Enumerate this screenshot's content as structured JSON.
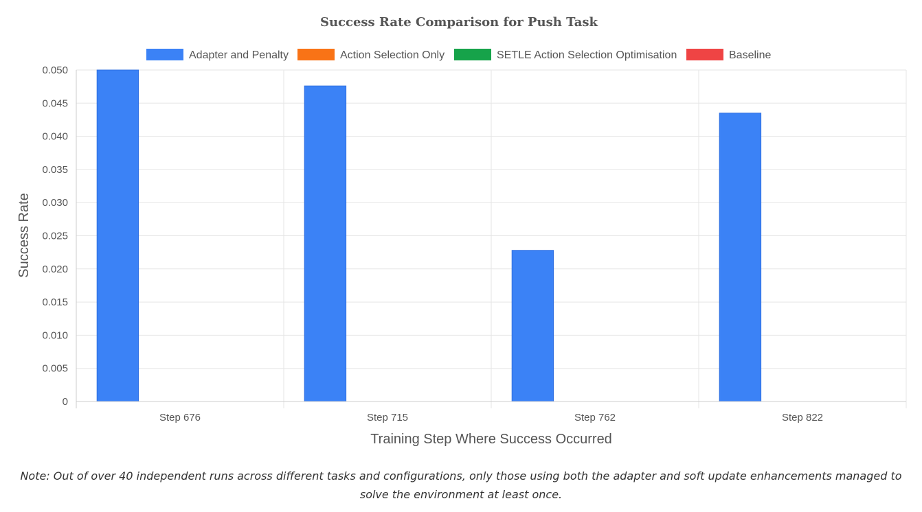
{
  "chart_data": {
    "type": "bar",
    "title": "Success Rate Comparison for Push Task",
    "xlabel": "Training Step Where Success Occurred",
    "ylabel": "Success Rate",
    "categories": [
      "Step 676",
      "Step 715",
      "Step 762",
      "Step 822"
    ],
    "series": [
      {
        "name": "Adapter and Penalty",
        "color": "#3b82f6",
        "values": [
          0.05,
          0.0476,
          0.0228,
          0.0435
        ]
      },
      {
        "name": "Action Selection Only",
        "color": "#f97316",
        "values": [
          0,
          0,
          0,
          0
        ]
      },
      {
        "name": "SETLE Action Selection Optimisation",
        "color": "#16a34a",
        "values": [
          0,
          0,
          0,
          0
        ]
      },
      {
        "name": "Baseline",
        "color": "#ef4444",
        "values": [
          0,
          0,
          0,
          0
        ]
      }
    ],
    "ylim": [
      0,
      0.05
    ],
    "yticks": [
      "0",
      "0.005",
      "0.010",
      "0.015",
      "0.020",
      "0.025",
      "0.030",
      "0.035",
      "0.040",
      "0.045",
      "0.050"
    ],
    "grid": true,
    "legend_position": "top-center"
  },
  "note": "Note: Out of over 40 independent runs across different tasks and configurations, only those using both the adapter and soft update enhancements managed to solve the environment at least once."
}
